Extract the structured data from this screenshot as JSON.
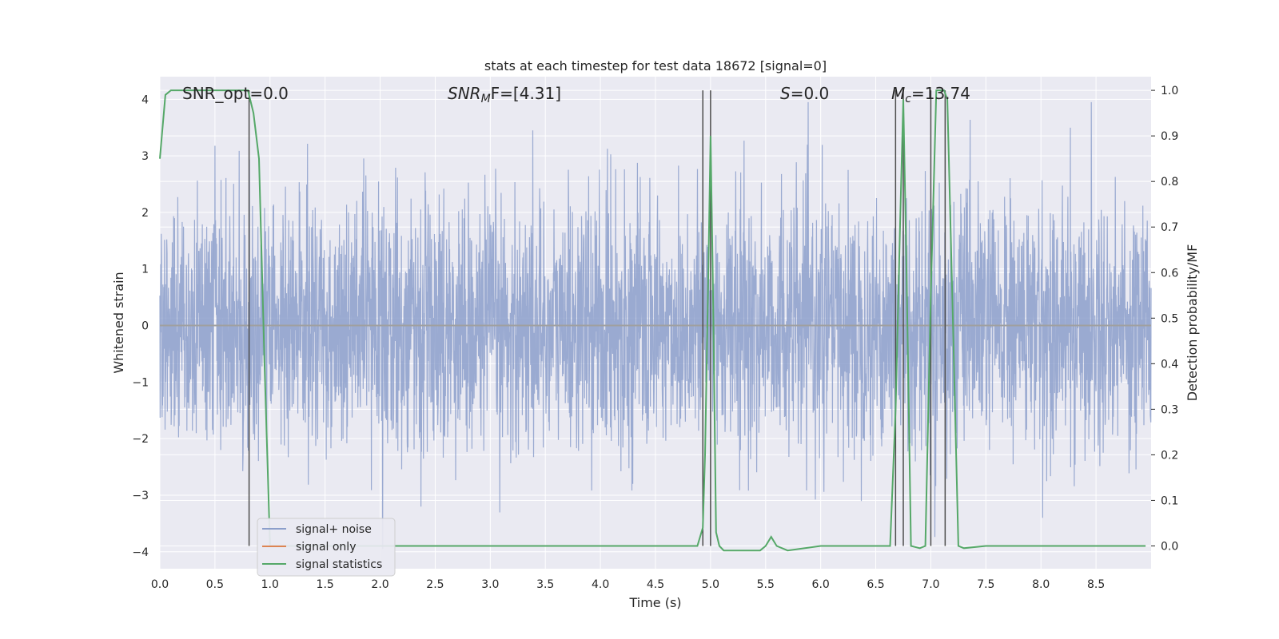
{
  "chart_data": {
    "type": "line",
    "title": "stats at each timestep for test data 18672 [signal=0]",
    "xlabel": "Time (s)",
    "ylabel": "Whitened strain",
    "ylabel_right": "Detection probability/MF",
    "xlim": [
      0,
      9.0
    ],
    "ylim": [
      -4.3,
      4.4
    ],
    "ylim_right": [
      -0.05,
      1.03
    ],
    "x_ticks": [
      "0.0",
      "0.5",
      "1.0",
      "1.5",
      "2.0",
      "2.5",
      "3.0",
      "3.5",
      "4.0",
      "4.5",
      "5.0",
      "5.5",
      "6.0",
      "6.5",
      "7.0",
      "7.5",
      "8.0",
      "8.5"
    ],
    "x_tick_values": [
      0,
      0.5,
      1,
      1.5,
      2,
      2.5,
      3,
      3.5,
      4,
      4.5,
      5,
      5.5,
      6,
      6.5,
      7,
      7.5,
      8,
      8.5
    ],
    "y_ticks": [
      "−4",
      "−3",
      "−2",
      "−1",
      "0",
      "1",
      "2",
      "3",
      "4"
    ],
    "y_tick_values": [
      -4,
      -3,
      -2,
      -1,
      0,
      1,
      2,
      3,
      4
    ],
    "y_ticks_right": [
      "0.0",
      "0.1",
      "0.2",
      "0.3",
      "0.4",
      "0.5",
      "0.6",
      "0.7",
      "0.8",
      "0.9",
      "1.0"
    ],
    "y_tick_values_right": [
      0,
      0.1,
      0.2,
      0.3,
      0.4,
      0.5,
      0.6,
      0.7,
      0.8,
      0.9,
      1.0
    ],
    "annotations": {
      "snr_opt": "SNR_opt=0.0",
      "snr_mf_sym": "SNR",
      "snr_mf_sub": "M",
      "snr_mf_rest": "F=[4.31]",
      "s_sym": "S",
      "s_rest": "=0.0",
      "mc_sym": "M",
      "mc_sub": "c",
      "mc_rest": "=13.74"
    },
    "legend": {
      "position": "lower-left",
      "entries": [
        "signal+ noise",
        "signal only",
        "signal statistics"
      ]
    },
    "colors": {
      "noise": "#8c9fcb",
      "signal": "#dd8452",
      "stats": "#55a868",
      "vlines": "#4d4d4d",
      "background": "#eaeaf2",
      "grid": "#ffffff"
    },
    "series": [
      {
        "name": "signal statistics",
        "axis": "right",
        "x": [
          0,
          0.05,
          0.1,
          0.15,
          0.2,
          0.3,
          0.4,
          0.5,
          0.6,
          0.7,
          0.8,
          0.85,
          0.9,
          0.95,
          1.0,
          1.5,
          2.0,
          3.0,
          4.0,
          4.5,
          4.88,
          4.93,
          4.95,
          4.98,
          5.0,
          5.02,
          5.05,
          5.08,
          5.12,
          5.2,
          5.3,
          5.45,
          5.5,
          5.55,
          5.6,
          5.7,
          6.0,
          6.3,
          6.5,
          6.63,
          6.68,
          6.72,
          6.75,
          6.78,
          6.82,
          6.9,
          6.95,
          7.0,
          7.05,
          7.08,
          7.12,
          7.15,
          7.2,
          7.25,
          7.3,
          7.5,
          8.0,
          8.5,
          8.95
        ],
        "y": [
          0.85,
          0.99,
          1.0,
          1.0,
          1.0,
          1.0,
          1.0,
          1.0,
          1.0,
          1.0,
          1.0,
          0.95,
          0.85,
          0.4,
          0.0,
          0.0,
          0.0,
          0.0,
          0.0,
          0.0,
          0.0,
          0.04,
          0.2,
          0.6,
          0.9,
          0.6,
          0.03,
          0.0,
          -0.01,
          -0.01,
          -0.01,
          -0.01,
          0.0,
          0.02,
          0.0,
          -0.01,
          0.0,
          0.0,
          0.0,
          0.0,
          0.3,
          0.7,
          0.98,
          0.6,
          0.0,
          -0.005,
          0.0,
          0.55,
          1.0,
          1.0,
          1.0,
          0.98,
          0.5,
          0.0,
          -0.005,
          0.0,
          0.0,
          0.0,
          0.0
        ]
      },
      {
        "name": "signal only",
        "axis": "left",
        "x": [
          0,
          9.0
        ],
        "y": [
          0,
          0
        ]
      }
    ],
    "vertical_markers": [
      0.81,
      4.93,
      5.0,
      6.68,
      6.75,
      7.0,
      7.13
    ],
    "noise_amplitude": 1.1
  }
}
